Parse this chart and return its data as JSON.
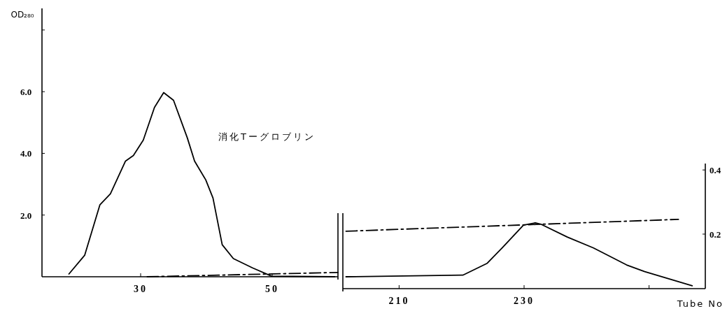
{
  "chart_data": [
    {
      "type": "line",
      "ylabel": "OD₂₈₀",
      "annotations": [
        "消化Tーグロブリン"
      ],
      "xlim": [
        15,
        60
      ],
      "xticks": [
        30,
        50
      ],
      "ylim": [
        0,
        8.7
      ],
      "yticks": [
        {
          "value": 2,
          "label": "2.0"
        },
        {
          "value": 4,
          "label": "4.0"
        },
        {
          "value": 6,
          "label": "6.0"
        },
        {
          "value": 8,
          "label": null
        }
      ],
      "series": [
        {
          "color": "#000000",
          "line_style": "solid",
          "x": [
            19.1,
            21.5,
            23.8,
            25.4,
            27.7,
            28.9,
            30.4,
            32.1,
            33.5,
            35.0,
            37.1,
            38.2,
            39.9,
            41.0,
            42.4,
            44.1,
            47.0,
            49.9,
            59.5
          ],
          "values": [
            0.09,
            0.7,
            2.33,
            2.69,
            3.75,
            3.93,
            4.43,
            5.49,
            5.97,
            5.72,
            4.5,
            3.75,
            3.14,
            2.55,
            1.04,
            0.59,
            0.29,
            0.02,
            0.0
          ]
        },
        {
          "color": "#000000",
          "line_style": "dashed",
          "x": [
            31,
            60
          ],
          "values": [
            0.0,
            0.14
          ]
        }
      ]
    },
    {
      "type": "line",
      "xlabel": "Tube No",
      "xlim": [
        201,
        259
      ],
      "xticks": [
        210,
        230,
        {
          "value": 250,
          "label": null
        }
      ],
      "y2lim": [
        0.03,
        0.42
      ],
      "y2ticks": [
        0.2,
        0.4
      ],
      "series": [
        {
          "color": "#000000",
          "line_style": "solid",
          "axis": "y2",
          "x": [
            201.5,
            220.2,
            224.1,
            226.5,
            229.9,
            231.8,
            232.8,
            236.9,
            241.1,
            246.4,
            249.3,
            256.9
          ],
          "values": [
            0.067,
            0.072,
            0.109,
            0.157,
            0.228,
            0.235,
            0.23,
            0.191,
            0.157,
            0.104,
            0.083,
            0.039
          ]
        },
        {
          "color": "#000000",
          "line_style": "dashed",
          "axis": "y2",
          "x": [
            201.5,
            254.7
          ],
          "values": [
            0.209,
            0.246
          ]
        }
      ]
    }
  ]
}
